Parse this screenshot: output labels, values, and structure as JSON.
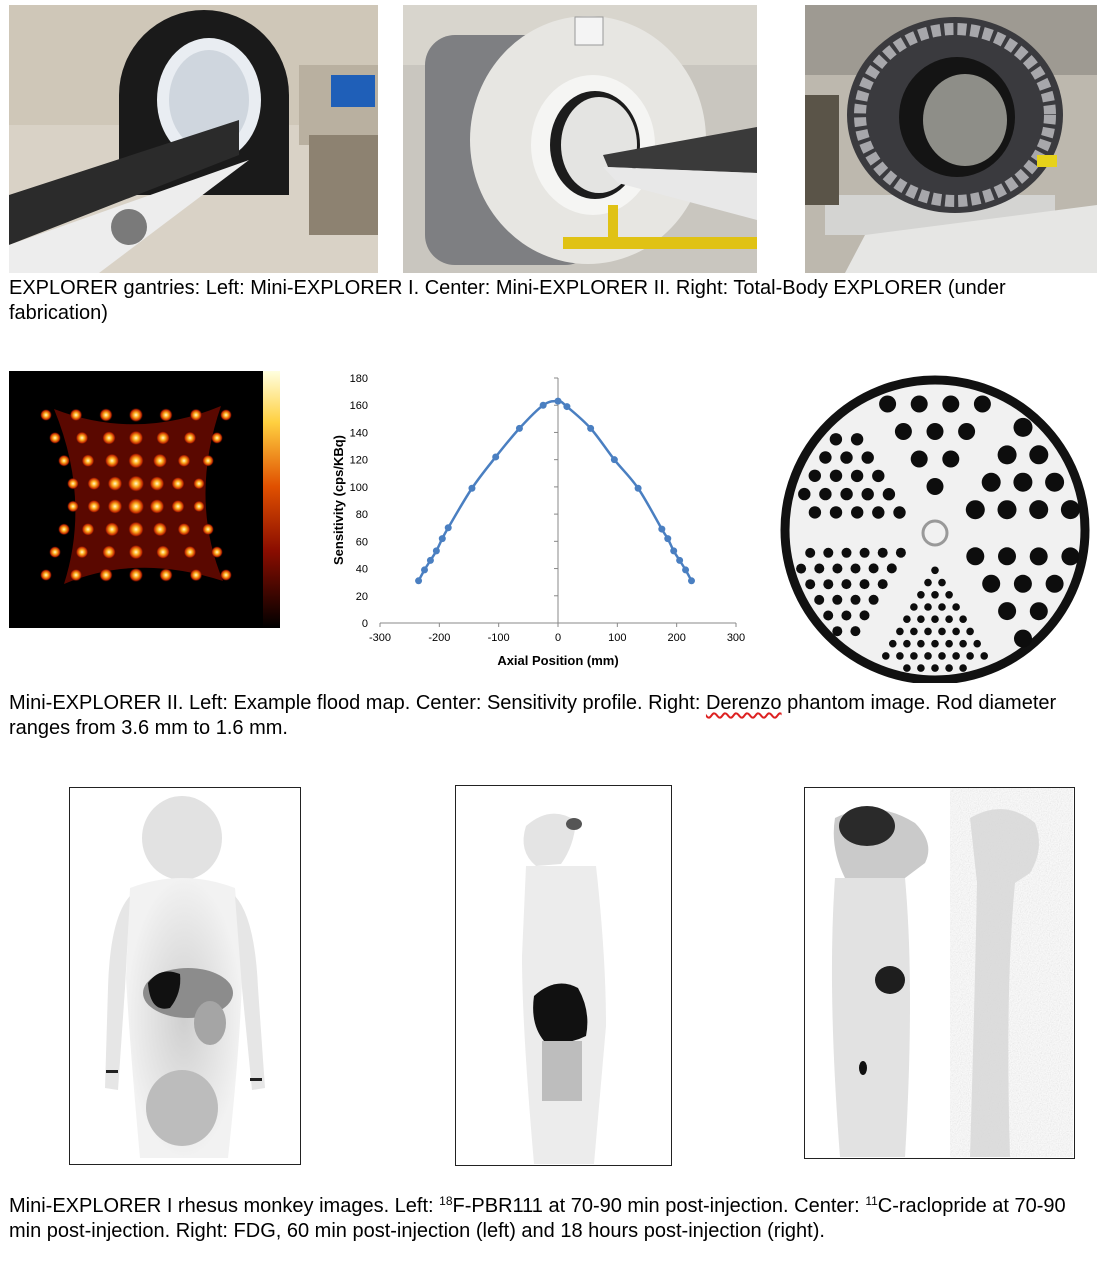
{
  "captions": {
    "gantries": "EXPLORER gantries: Left: Mini-EXPLORER I. Center: Mini-EXPLORER II. Right: Total-Body EXPLORER (under fabrication)",
    "mini2_a": "Mini-EXPLORER II. Left: Example flood map. Center: Sensitivity profile. Right: ",
    "mini2_b": "Derenzo",
    "mini2_c": " phantom image. Rod diameter ranges from 3.6 mm to 1.6 mm.",
    "monkey_a": "Mini-EXPLORER I rhesus monkey images. Left: ",
    "monkey_b": "18",
    "monkey_c": "F-PBR111 at 70-90 min post-injection. Center: ",
    "monkey_d": "11",
    "monkey_e": "C-raclopride at 70-90 min post-injection. Right: FDG, 60 min post-injection (left) and 18 hours post-injection (right)."
  },
  "chart_data": {
    "type": "line",
    "title": "",
    "xlabel": "Axial Position (mm)",
    "ylabel": "Sensitivity (cps/KBq)",
    "xlim": [
      -300,
      300
    ],
    "ylim": [
      0,
      180
    ],
    "xticks": [
      -300,
      -200,
      -100,
      0,
      100,
      200,
      300
    ],
    "yticks": [
      0,
      20,
      40,
      60,
      80,
      100,
      120,
      140,
      160,
      180
    ],
    "grid": false,
    "legend": "none",
    "color": "#4a7fc1",
    "x": [
      -235,
      -225,
      -215,
      -205,
      -195,
      -185,
      -145,
      -105,
      -65,
      -25,
      0,
      15,
      55,
      95,
      135,
      175,
      185,
      195,
      205,
      215,
      225
    ],
    "y": [
      31,
      39,
      46,
      53,
      62,
      70,
      99,
      122,
      143,
      160,
      163,
      159,
      143,
      120,
      99,
      69,
      62,
      53,
      46,
      39,
      31
    ]
  }
}
